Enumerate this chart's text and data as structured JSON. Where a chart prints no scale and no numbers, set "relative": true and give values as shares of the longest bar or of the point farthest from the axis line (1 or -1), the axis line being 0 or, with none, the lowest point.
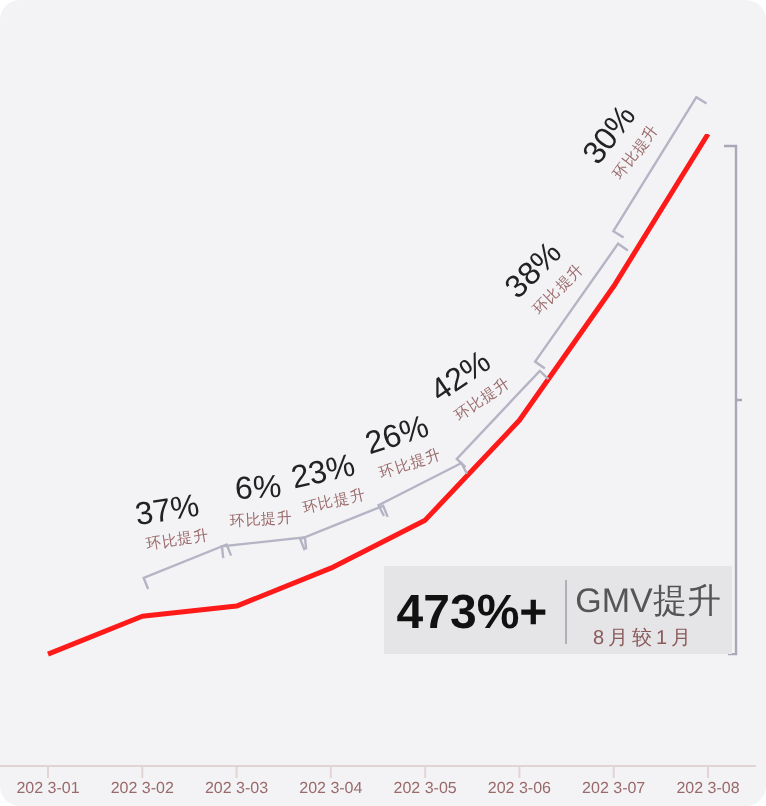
{
  "chart_data": {
    "type": "line",
    "categories": [
      "202 3-01",
      "202 3-02",
      "202 3-03",
      "202 3-04",
      "202 3-05",
      "202 3-06",
      "202 3-07",
      "202 3-08"
    ],
    "series": [
      {
        "color": "#ff1a1a",
        "values": [
          0.177,
          0.237,
          0.253,
          0.313,
          0.389,
          0.547,
          0.759,
          1
        ]
      }
    ],
    "relative": true,
    "marker": "none",
    "line_style": "solid",
    "legend": false,
    "grid": false,
    "annotations": [
      "37%\n环比提升",
      "6%\n环比提升",
      "23%\n环比提升",
      "26%\n环比提升",
      "42%\n环比提升",
      "38%\n环比提升",
      "30%\n环比提升",
      "473%+",
      "GMV提升",
      "8月较1月"
    ]
  }
}
